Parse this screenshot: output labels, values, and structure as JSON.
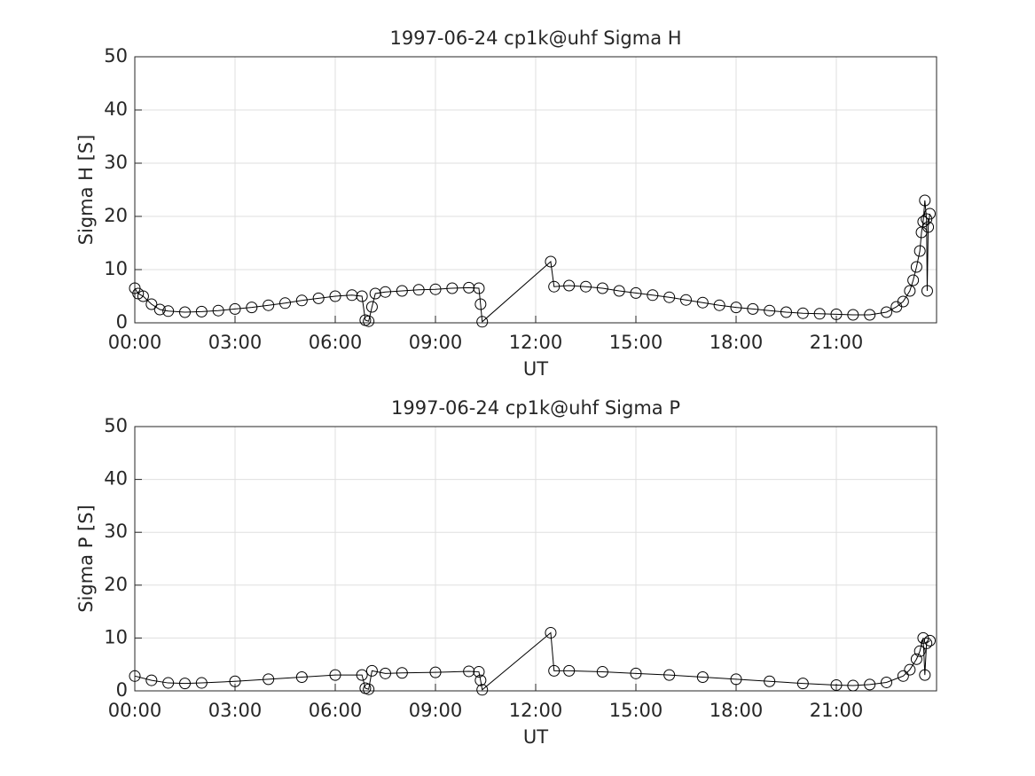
{
  "chart_data": [
    {
      "type": "line",
      "title": "1997-06-24  cp1k@uhf Sigma H",
      "xlabel": "UT",
      "ylabel": "Sigma H [S]",
      "xlim": [
        0,
        24
      ],
      "ylim": [
        0,
        50
      ],
      "grid": true,
      "xticks": [
        {
          "value": 0,
          "label": "00:00"
        },
        {
          "value": 3,
          "label": "03:00"
        },
        {
          "value": 6,
          "label": "06:00"
        },
        {
          "value": 9,
          "label": "09:00"
        },
        {
          "value": 12,
          "label": "12:00"
        },
        {
          "value": 15,
          "label": "15:00"
        },
        {
          "value": 18,
          "label": "18:00"
        },
        {
          "value": 21,
          "label": "21:00"
        }
      ],
      "yticks": [
        0,
        10,
        20,
        30,
        40,
        50
      ],
      "x": [
        0,
        0.1,
        0.25,
        0.5,
        0.75,
        1,
        1.5,
        2,
        2.5,
        3,
        3.5,
        4,
        4.5,
        5,
        5.5,
        6,
        6.5,
        6.8,
        6.9,
        7.0,
        7.1,
        7.2,
        7.5,
        8,
        8.5,
        9,
        9.5,
        10,
        10.3,
        10.35,
        10.4,
        12.45,
        12.55,
        13,
        13.5,
        14,
        14.5,
        15,
        15.5,
        16,
        16.5,
        17,
        17.5,
        18,
        18.5,
        19,
        19.5,
        20,
        20.5,
        21,
        21.5,
        22,
        22.5,
        22.8,
        23,
        23.2,
        23.3,
        23.4,
        23.5,
        23.55,
        23.6,
        23.65,
        23.7,
        23.72,
        23.75,
        23.8
      ],
      "series": [
        {
          "name": "Sigma H",
          "color": "#000000",
          "values": [
            6.5,
            5.5,
            5,
            3.5,
            2.5,
            2.2,
            2,
            2.1,
            2.3,
            2.6,
            2.9,
            3.3,
            3.7,
            4.2,
            4.6,
            5,
            5.2,
            5,
            0.5,
            0.3,
            3,
            5.5,
            5.8,
            6,
            6.2,
            6.3,
            6.5,
            6.6,
            6.5,
            3.5,
            0.2,
            11.5,
            6.8,
            7,
            6.8,
            6.5,
            6,
            5.6,
            5.2,
            4.8,
            4.3,
            3.8,
            3.3,
            2.9,
            2.6,
            2.3,
            2,
            1.8,
            1.7,
            1.6,
            1.5,
            1.5,
            2,
            3,
            4,
            6,
            8,
            10.5,
            13.5,
            17,
            19,
            23,
            19.5,
            6,
            18,
            20.5
          ]
        }
      ]
    },
    {
      "type": "line",
      "title": "1997-06-24  cp1k@uhf Sigma P",
      "xlabel": "UT",
      "ylabel": "Sigma P [S]",
      "xlim": [
        0,
        24
      ],
      "ylim": [
        0,
        50
      ],
      "grid": true,
      "xticks": [
        {
          "value": 0,
          "label": "00:00"
        },
        {
          "value": 3,
          "label": "03:00"
        },
        {
          "value": 6,
          "label": "06:00"
        },
        {
          "value": 9,
          "label": "09:00"
        },
        {
          "value": 12,
          "label": "12:00"
        },
        {
          "value": 15,
          "label": "15:00"
        },
        {
          "value": 18,
          "label": "18:00"
        },
        {
          "value": 21,
          "label": "21:00"
        }
      ],
      "yticks": [
        0,
        10,
        20,
        30,
        40,
        50
      ],
      "x": [
        0,
        0.5,
        1,
        1.5,
        2,
        3,
        4,
        5,
        6,
        6.8,
        6.9,
        7.0,
        7.1,
        7.5,
        8,
        9,
        10,
        10.3,
        10.35,
        10.4,
        12.45,
        12.55,
        13,
        14,
        15,
        16,
        17,
        18,
        19,
        20,
        21,
        21.5,
        22,
        22.5,
        23,
        23.2,
        23.4,
        23.5,
        23.6,
        23.65,
        23.7,
        23.8
      ],
      "series": [
        {
          "name": "Sigma P",
          "color": "#000000",
          "values": [
            2.8,
            2,
            1.5,
            1.4,
            1.5,
            1.8,
            2.2,
            2.6,
            3,
            3,
            0.5,
            0.3,
            3.8,
            3.3,
            3.4,
            3.5,
            3.7,
            3.6,
            2,
            0.2,
            11,
            3.8,
            3.8,
            3.6,
            3.3,
            3,
            2.6,
            2.2,
            1.8,
            1.4,
            1.1,
            1.0,
            1.2,
            1.6,
            2.8,
            4,
            6,
            7.5,
            10,
            3,
            9,
            9.5
          ]
        }
      ]
    }
  ]
}
